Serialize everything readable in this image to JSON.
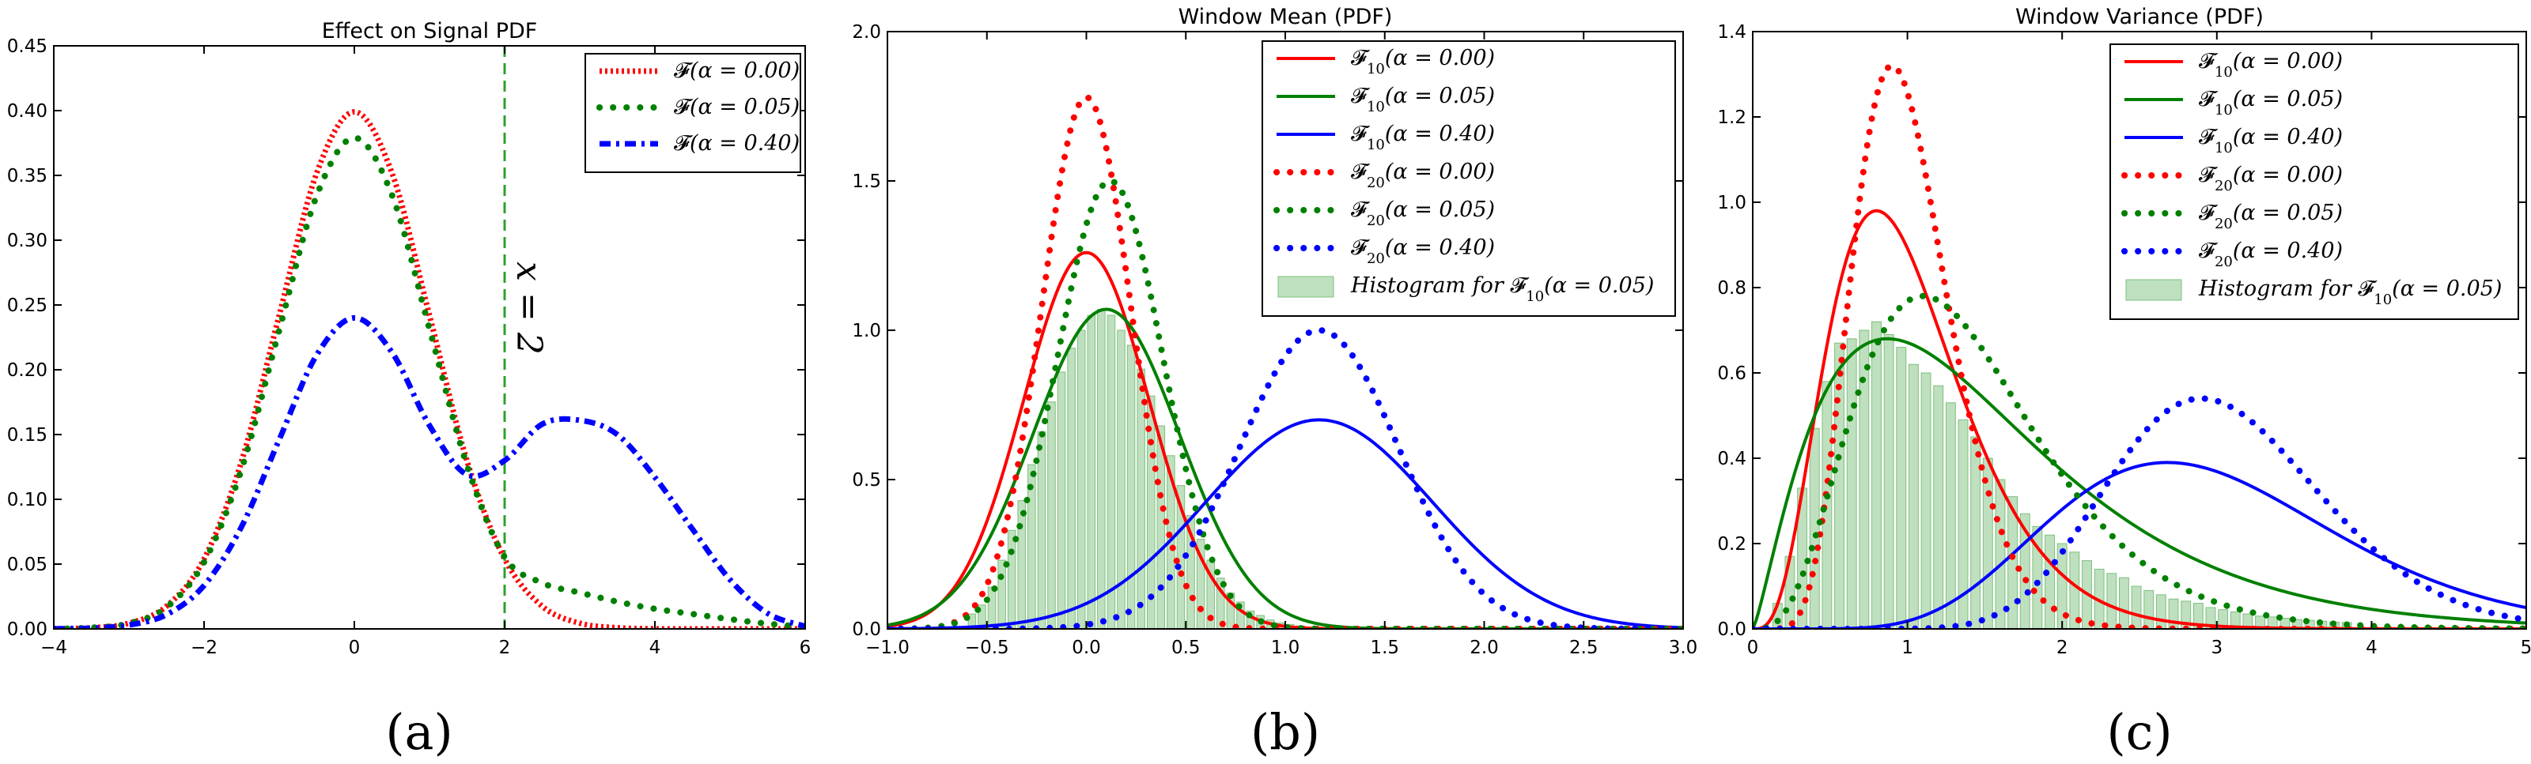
{
  "chart_data": [
    {
      "panel_label": "(a)",
      "type": "line",
      "title": "Effect on Signal PDF",
      "xlim": [
        -4,
        6
      ],
      "ylim": [
        0,
        0.45
      ],
      "xticks": [
        "−4",
        "−2",
        "0",
        "2",
        "4",
        "6"
      ],
      "yticks": [
        "0.00",
        "0.05",
        "0.10",
        "0.15",
        "0.20",
        "0.25",
        "0.30",
        "0.35",
        "0.40",
        "0.45"
      ],
      "annotation": {
        "text": "x = 2",
        "x": 2
      },
      "series": [
        {
          "name": "𝓕(α = 0.00)",
          "color": "#ff0000",
          "style": "dotted",
          "x": [
            -4.0,
            -3.5,
            -3.0,
            -2.5,
            -2.0,
            -1.5,
            -1.0,
            -0.5,
            0.0,
            0.5,
            1.0,
            1.5,
            2.0,
            2.5,
            3.0,
            3.5,
            4.0,
            4.5,
            5.0,
            5.5,
            6.0
          ],
          "y": [
            0.0001,
            0.0009,
            0.0044,
            0.0175,
            0.054,
            0.1295,
            0.242,
            0.352,
            0.399,
            0.352,
            0.242,
            0.1295,
            0.054,
            0.0175,
            0.0044,
            0.0009,
            0.0001,
            0.0,
            0.0,
            0.0,
            0.0
          ]
        },
        {
          "name": "𝓕(α = 0.05)",
          "color": "#008000",
          "style": "dots",
          "x": [
            -4.0,
            -3.5,
            -3.0,
            -2.5,
            -2.0,
            -1.5,
            -1.0,
            -0.5,
            0.0,
            0.5,
            1.0,
            1.5,
            2.0,
            2.5,
            3.0,
            3.5,
            4.0,
            4.5,
            5.0,
            5.5,
            6.0
          ],
          "y": [
            0.0001,
            0.0009,
            0.0042,
            0.0166,
            0.0515,
            0.1235,
            0.2305,
            0.3345,
            0.379,
            0.335,
            0.2315,
            0.126,
            0.0555,
            0.0355,
            0.028,
            0.021,
            0.0155,
            0.0115,
            0.0075,
            0.004,
            0.0015
          ]
        },
        {
          "name": "𝓕(α = 0.40)",
          "color": "#0000ff",
          "style": "dashdot",
          "x": [
            -4.0,
            -3.5,
            -3.0,
            -2.5,
            -2.0,
            -1.5,
            -1.0,
            -0.5,
            0.0,
            0.5,
            1.0,
            1.5,
            2.0,
            2.5,
            3.0,
            3.5,
            4.0,
            4.5,
            5.0,
            5.5,
            6.0
          ],
          "y": [
            0.0001,
            0.0006,
            0.003,
            0.011,
            0.0335,
            0.079,
            0.146,
            0.2115,
            0.24,
            0.2135,
            0.157,
            0.119,
            0.13,
            0.158,
            0.161,
            0.15,
            0.117,
            0.077,
            0.038,
            0.012,
            0.002
          ]
        }
      ]
    },
    {
      "panel_label": "(b)",
      "type": "line",
      "title": "Window Mean (PDF)",
      "xlim": [
        -1.0,
        3.0
      ],
      "ylim": [
        0,
        2.0
      ],
      "xticks": [
        "−1.0",
        "−0.5",
        "0.0",
        "0.5",
        "1.0",
        "1.5",
        "2.0",
        "2.5",
        "3.0"
      ],
      "yticks": [
        "0.0",
        "0.5",
        "1.0",
        "1.5",
        "2.0"
      ],
      "series": [
        {
          "name": "𝓕₁₀(α = 0.00)",
          "sub": "10",
          "alpha": "0.00",
          "color": "#ff0000",
          "style": "solid",
          "mu": 0.0,
          "sigma": 0.316,
          "peak": 1.26
        },
        {
          "name": "𝓕₁₀(α = 0.05)",
          "sub": "10",
          "alpha": "0.05",
          "color": "#008000",
          "style": "solid",
          "mu": 0.1,
          "sigma": 0.37,
          "peak": 1.07
        },
        {
          "name": "𝓕₁₀(α = 0.40)",
          "sub": "10",
          "alpha": "0.40",
          "color": "#0000ff",
          "style": "solid",
          "mu": 1.17,
          "sigma": 0.57,
          "peak": 0.7
        },
        {
          "name": "𝓕₂₀(α = 0.00)",
          "sub": "20",
          "alpha": "0.00",
          "color": "#ff0000",
          "style": "dots",
          "mu": 0.0,
          "sigma": 0.224,
          "peak": 1.78
        },
        {
          "name": "𝓕₂₀(α = 0.05)",
          "sub": "20",
          "alpha": "0.05",
          "color": "#008000",
          "style": "dots",
          "mu": 0.12,
          "sigma": 0.265,
          "peak": 1.5
        },
        {
          "name": "𝓕₂₀(α = 0.40)",
          "sub": "20",
          "alpha": "0.40",
          "color": "#0000ff",
          "style": "dots",
          "mu": 1.17,
          "sigma": 0.4,
          "peak": 1.0
        }
      ],
      "histogram": {
        "name": "Histogram for 𝓕₁₀(α = 0.05)",
        "sub": "10",
        "alpha": "0.05",
        "color": "#a8d5a8",
        "bin_width": 0.05,
        "bin_starts": [
          -0.6,
          -0.55,
          -0.5,
          -0.45,
          -0.4,
          -0.35,
          -0.3,
          -0.25,
          -0.2,
          -0.15,
          -0.1,
          -0.05,
          0.0,
          0.05,
          0.1,
          0.15,
          0.2,
          0.25,
          0.3,
          0.35,
          0.4,
          0.45,
          0.5,
          0.55,
          0.6,
          0.65,
          0.7,
          0.75,
          0.8,
          0.85,
          0.9,
          0.95,
          1.0,
          1.05
        ],
        "values": [
          0.05,
          0.08,
          0.14,
          0.23,
          0.33,
          0.43,
          0.55,
          0.66,
          0.76,
          0.86,
          0.94,
          1.0,
          1.05,
          1.07,
          1.05,
          1.0,
          0.95,
          0.87,
          0.78,
          0.68,
          0.58,
          0.48,
          0.38,
          0.3,
          0.23,
          0.17,
          0.12,
          0.09,
          0.06,
          0.045,
          0.03,
          0.02,
          0.015,
          0.01
        ]
      }
    },
    {
      "panel_label": "(c)",
      "type": "line",
      "title": "Window Variance (PDF)",
      "xlim": [
        0,
        5
      ],
      "ylim": [
        0,
        1.4
      ],
      "xticks": [
        "0",
        "1",
        "2",
        "3",
        "4",
        "5"
      ],
      "yticks": [
        "0.0",
        "0.2",
        "0.4",
        "0.6",
        "0.8",
        "1.0",
        "1.2",
        "1.4"
      ],
      "series": [
        {
          "name": "𝓕₁₀(α = 0.00)",
          "sub": "10",
          "alpha": "0.00",
          "color": "#ff0000",
          "style": "solid",
          "mode": 0.8,
          "shape": 4.5,
          "peak": 0.98
        },
        {
          "name": "𝓕₁₀(α = 0.05)",
          "sub": "10",
          "alpha": "0.05",
          "color": "#008000",
          "style": "solid",
          "mode": 0.87,
          "shape": 2.3,
          "peak": 0.68
        },
        {
          "name": "𝓕₁₀(α = 0.40)",
          "sub": "10",
          "alpha": "0.40",
          "color": "#0000ff",
          "style": "solid",
          "mode": 2.68,
          "shape": 9.5,
          "peak": 0.39
        },
        {
          "name": "𝓕₂₀(α = 0.00)",
          "sub": "20",
          "alpha": "0.00",
          "color": "#ff0000",
          "style": "dots",
          "mode": 0.9,
          "shape": 9.5,
          "peak": 1.32
        },
        {
          "name": "𝓕₂₀(α = 0.05)",
          "sub": "20",
          "alpha": "0.05",
          "color": "#008000",
          "style": "dots",
          "mode": 1.1,
          "shape": 4.5,
          "peak": 0.78
        },
        {
          "name": "𝓕₂₀(α = 0.40)",
          "sub": "20",
          "alpha": "0.40",
          "color": "#0000ff",
          "style": "dots",
          "mode": 2.9,
          "shape": 19.0,
          "peak": 0.54
        }
      ],
      "histogram": {
        "name": "Histogram for 𝓕₁₀(α = 0.05)",
        "sub": "10",
        "alpha": "0.05",
        "color": "#a8d5a8",
        "bin_width": 0.08,
        "bin_starts": [
          0.12,
          0.2,
          0.28,
          0.36,
          0.44,
          0.52,
          0.6,
          0.68,
          0.76,
          0.84,
          0.92,
          1.0,
          1.08,
          1.16,
          1.24,
          1.32,
          1.4,
          1.48,
          1.56,
          1.64,
          1.72,
          1.8,
          1.88,
          1.96,
          2.04,
          2.12,
          2.2,
          2.28,
          2.36,
          2.44,
          2.52,
          2.6,
          2.68,
          2.76,
          2.84,
          2.92,
          3.0,
          3.08,
          3.16,
          3.24,
          3.32,
          3.4,
          3.48,
          3.56,
          3.64,
          3.72,
          3.8
        ],
        "values": [
          0.06,
          0.17,
          0.33,
          0.47,
          0.58,
          0.67,
          0.68,
          0.7,
          0.72,
          0.69,
          0.66,
          0.62,
          0.6,
          0.57,
          0.53,
          0.49,
          0.45,
          0.4,
          0.35,
          0.31,
          0.27,
          0.24,
          0.22,
          0.2,
          0.18,
          0.16,
          0.14,
          0.13,
          0.12,
          0.1,
          0.09,
          0.08,
          0.07,
          0.065,
          0.06,
          0.05,
          0.045,
          0.04,
          0.035,
          0.03,
          0.028,
          0.025,
          0.022,
          0.02,
          0.018,
          0.016,
          0.015
        ]
      }
    }
  ]
}
